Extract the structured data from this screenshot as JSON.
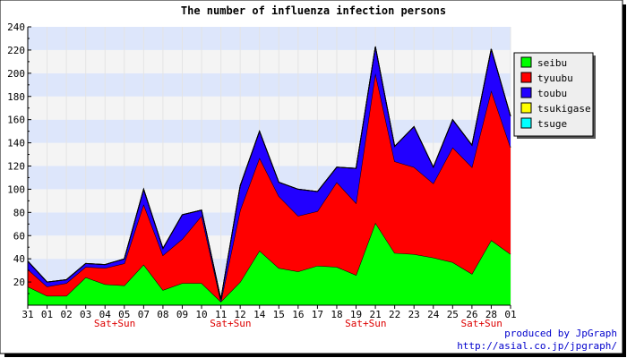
{
  "chart_data": {
    "type": "area",
    "title": "The number of influenza infection persons",
    "xlabel": "",
    "ylabel": "",
    "ylim": [
      0,
      240
    ],
    "yticks": [
      20,
      40,
      60,
      80,
      100,
      120,
      140,
      160,
      180,
      200,
      220,
      240
    ],
    "grid": true,
    "stacked": true,
    "legend_position": "right",
    "categories": [
      "31",
      "01",
      "02",
      "03",
      "04",
      "05",
      "07",
      "08",
      "09",
      "10",
      "11",
      "12",
      "14",
      "15",
      "16",
      "17",
      "18",
      "19",
      "21",
      "22",
      "23",
      "24",
      "25",
      "26",
      "28",
      "01"
    ],
    "weekend_marks": [
      {
        "after_category_index": 4,
        "label": "Sat+Sun"
      },
      {
        "after_category_index": 10,
        "label": "Sat+Sun"
      },
      {
        "after_category_index": 17,
        "label": "Sat+Sun"
      },
      {
        "after_category_index": 23,
        "label": "Sat+Sun"
      }
    ],
    "series": [
      {
        "name": "seibu",
        "color": "#00ff00",
        "values": [
          16,
          8,
          8,
          24,
          18,
          17,
          35,
          13,
          19,
          19,
          3,
          20,
          47,
          32,
          29,
          34,
          33,
          26,
          71,
          45,
          44,
          41,
          37,
          27,
          56,
          44
        ]
      },
      {
        "name": "tyuubu",
        "color": "#ff0000",
        "values": [
          15,
          8,
          11,
          9,
          14,
          19,
          52,
          30,
          38,
          58,
          0,
          62,
          80,
          62,
          48,
          47,
          73,
          62,
          129,
          79,
          75,
          64,
          99,
          92,
          129,
          92
        ]
      },
      {
        "name": "toubu",
        "color": "#2200ff",
        "values": [
          7,
          4,
          3,
          3,
          3,
          4,
          13,
          6,
          21,
          5,
          2,
          21,
          23,
          12,
          23,
          17,
          13,
          30,
          23,
          13,
          35,
          14,
          24,
          19,
          36,
          27
        ]
      },
      {
        "name": "tsukigase",
        "color": "#ffff00",
        "values": [
          0,
          0,
          0,
          0,
          0,
          0,
          0,
          0,
          0,
          0,
          0,
          0,
          0,
          0,
          0,
          0,
          0,
          0,
          0,
          0,
          0,
          0,
          0,
          0,
          0,
          0
        ]
      },
      {
        "name": "tsuge",
        "color": "#00ffff",
        "values": [
          0,
          0,
          0,
          0,
          0,
          0,
          0,
          0,
          0,
          0,
          0,
          0,
          0,
          0,
          0,
          0,
          0,
          0,
          0,
          0,
          0,
          0,
          0,
          0,
          0,
          0
        ]
      }
    ],
    "footer": [
      "produced by JpGraph",
      "http://asial.co.jp/jpgraph/"
    ]
  }
}
